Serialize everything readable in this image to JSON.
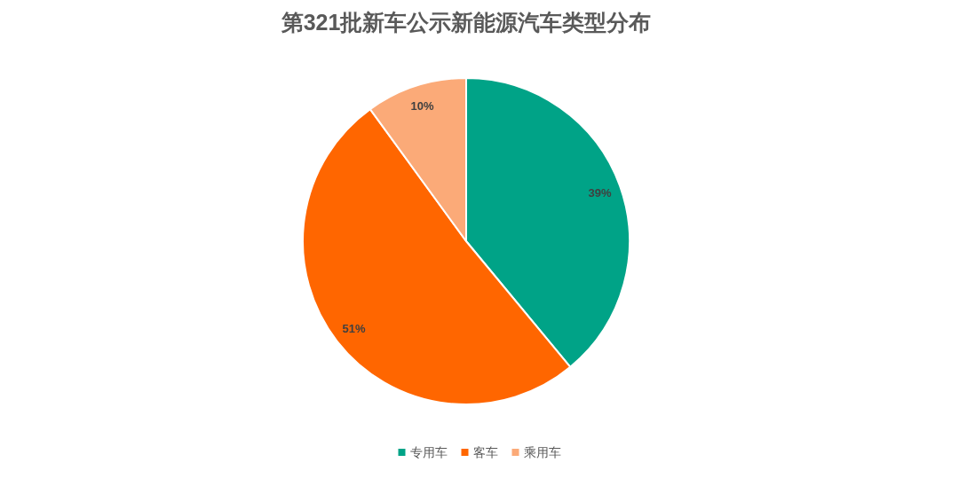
{
  "chart_data": {
    "type": "pie",
    "title": "第321批新车公示新能源汽车类型分布",
    "categories": [
      "专用车",
      "客车",
      "乘用车"
    ],
    "values": [
      39,
      51,
      10
    ],
    "colors": [
      "#00a387",
      "#ff6600",
      "#fbaa78"
    ],
    "value_labels": [
      "39%",
      "51%",
      "10%"
    ],
    "legend": "bottom"
  }
}
